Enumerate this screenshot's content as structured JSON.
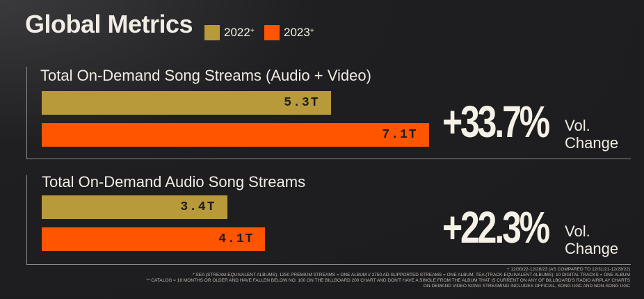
{
  "header": {
    "title": "Global Metrics",
    "legend": [
      {
        "label": "2022",
        "mark": "+",
        "color": "#b89a3a"
      },
      {
        "label": "2023",
        "mark": "+",
        "color": "#ff5400"
      }
    ]
  },
  "chart_data": [
    {
      "type": "bar",
      "title": "Total On-Demand Song Streams (Audio + Video)",
      "unit": "T",
      "series": [
        {
          "name": "2022",
          "color": "#b89a3a",
          "value": 5.3,
          "label": "5.3T"
        },
        {
          "name": "2023",
          "color": "#ff5400",
          "value": 7.1,
          "label": "7.1T"
        }
      ],
      "change": {
        "value": "+33.7%",
        "label_line1": "Vol.",
        "label_line2": "Change"
      }
    },
    {
      "type": "bar",
      "title": "Total On-Demand Audio Song Streams",
      "unit": "T",
      "series": [
        {
          "name": "2022",
          "color": "#b89a3a",
          "value": 3.4,
          "label": "3.4T"
        },
        {
          "name": "2023",
          "color": "#ff5400",
          "value": 4.1,
          "label": "4.1T"
        }
      ],
      "change": {
        "value": "+22.3%",
        "label_line1": "Vol.",
        "label_line2": "Change"
      }
    }
  ],
  "footnotes": [
    "+ 12/30/22-12/28/23 (AS COMPARED TO 12/31/21-12/29/22)",
    "* SEA (STREAM-EQUIVALENT ALBUMS): 1250 PREMIUM STREAMS = ONE ALBUM // 3750 AD-SUPPORTED STREAMS = ONE ALBUM; TEA (TRACK-EQUIVALENT ALBUMS): 10 DIGITAL TRACKS = ONE ALBUM",
    "** CATALOG = 18 MONTHS OR OLDER AND HAVE FALLEN BELOW NO. 100 ON THE BILLBOARD 200 CHART AND DON'T HAVE A SINGLE FROM THE ALBUM THAT IS CURRENT ON ANY OF BILLBOARD'S RADIO AIRPLAY CHARTS",
    "ON-DEMAND VIDEO SONG STREAMING INCLUDES OFFICIAL, SONG UGC AND NON-SONG UGC"
  ]
}
